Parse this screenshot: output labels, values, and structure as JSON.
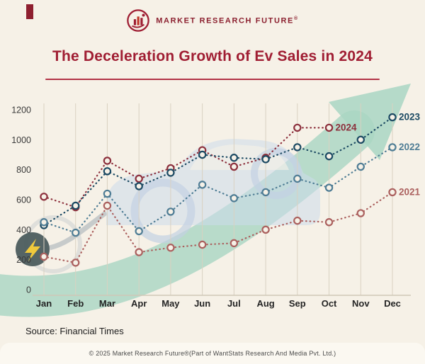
{
  "page": {
    "background": "#f6f1e7",
    "accent_red": "#9e1d32"
  },
  "header": {
    "brand": "MARKET RESEARCH FUTURE",
    "registered": "®",
    "logo_icon": "bar-chart-in-circle-logo"
  },
  "title": "The Deceleration Growth of Ev Sales in 2024",
  "source": "Source: Financial Times",
  "footer": "© 2025 Market Research Future®(Part of WantStats Research And Media Pvt. Ltd.)",
  "decorations": {
    "growth_arrow_color": "#a9d6c3",
    "car_color": "#ccdbeb",
    "lightning_color": "#f0c93c",
    "plug_color": "#47585a"
  },
  "chart_data": {
    "type": "line",
    "style": "dotted-lines-with-open-circle-markers",
    "x": [
      "Jan",
      "Feb",
      "Mar",
      "Apr",
      "May",
      "Jun",
      "Jul",
      "Aug",
      "Sep",
      "Oct",
      "Nov",
      "Dec"
    ],
    "ylim": [
      0,
      1200
    ],
    "yticks": [
      0,
      200,
      400,
      600,
      800,
      1000,
      1200
    ],
    "grid": "vertical-only",
    "legend_position": "end-of-line-labels",
    "series": [
      {
        "name": "2024",
        "color": "#8c2f3c",
        "values": [
          620,
          550,
          860,
          740,
          810,
          930,
          820,
          880,
          1080,
          1080,
          null,
          null
        ]
      },
      {
        "name": "2023",
        "color": "#1c4a63",
        "values": [
          430,
          560,
          790,
          690,
          780,
          900,
          880,
          870,
          950,
          890,
          1000,
          1150
        ]
      },
      {
        "name": "2022",
        "color": "#4f7d95",
        "values": [
          450,
          380,
          640,
          390,
          520,
          700,
          610,
          650,
          740,
          680,
          820,
          950
        ]
      },
      {
        "name": "2021",
        "color": "#ab605e",
        "values": [
          220,
          180,
          560,
          250,
          280,
          300,
          310,
          400,
          460,
          450,
          510,
          650
        ]
      }
    ]
  }
}
